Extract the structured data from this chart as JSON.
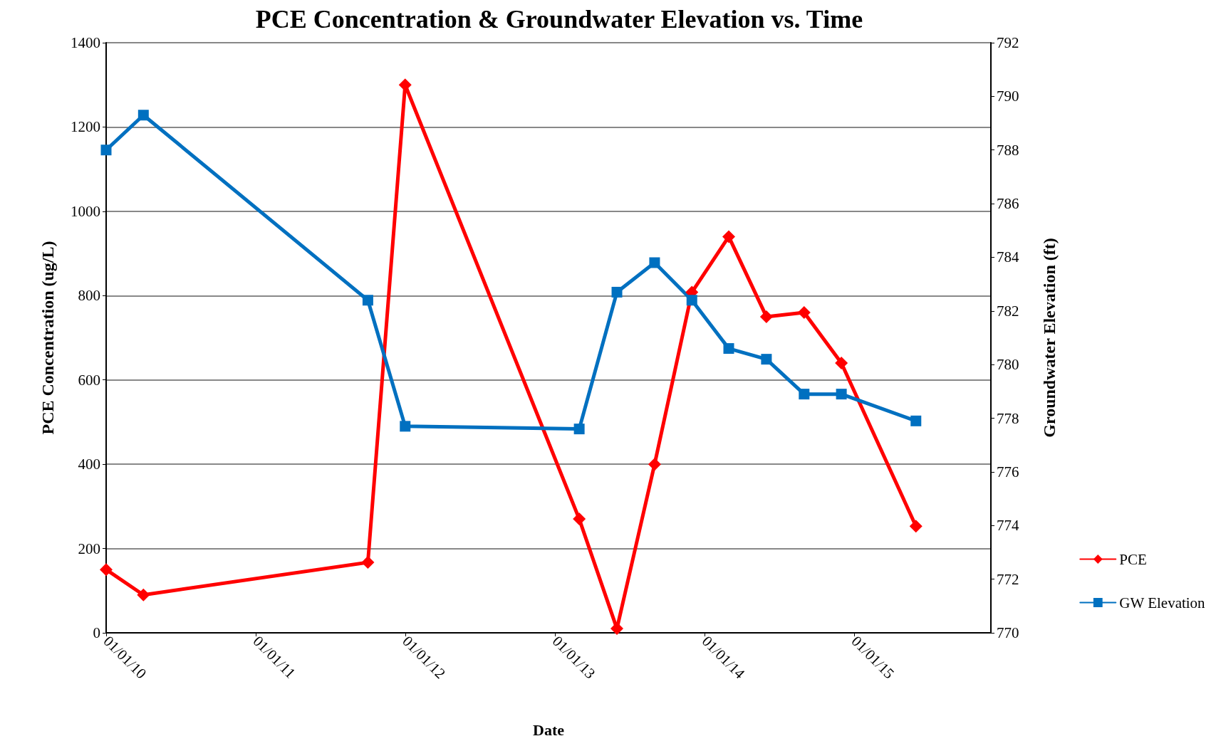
{
  "chart_data": {
    "type": "line",
    "title": "PCE Concentration & Groundwater Elevation vs. Time",
    "xlabel": "Date",
    "ylabel": "PCE Concentration (ug/L)",
    "y2label": "Groundwater Elevation (ft)",
    "xlim": [
      "2010-01-01",
      "2015-12-01"
    ],
    "xticks": [
      {
        "value": "2010-01-01",
        "label": "01/01/10"
      },
      {
        "value": "2011-01-01",
        "label": "01/01/11"
      },
      {
        "value": "2012-01-01",
        "label": "01/01/12"
      },
      {
        "value": "2013-01-01",
        "label": "01/01/13"
      },
      {
        "value": "2014-01-01",
        "label": "01/01/14"
      },
      {
        "value": "2015-01-01",
        "label": "01/01/15"
      }
    ],
    "ylim": [
      0,
      1400
    ],
    "yticks": [
      0,
      200,
      400,
      600,
      800,
      1000,
      1200,
      1400
    ],
    "y2lim": [
      770,
      792
    ],
    "y2ticks": [
      770,
      772,
      774,
      776,
      778,
      780,
      782,
      784,
      786,
      788,
      790,
      792
    ],
    "grid": "y",
    "legend": "right",
    "line_style": "solid",
    "series": [
      {
        "name": "PCE",
        "color": "#ff0000",
        "marker": "diamond",
        "x": [
          "2010-01-01",
          "2010-04-02",
          "2011-10-02",
          "2012-01-01",
          "2013-03-01",
          "2013-06-01",
          "2013-09-01",
          "2013-12-01",
          "2014-03-01",
          "2014-06-01",
          "2014-09-01",
          "2014-12-01",
          "2015-06-01"
        ],
        "values": [
          150,
          90,
          167,
          1300,
          270,
          10,
          400,
          808,
          940,
          750,
          760,
          640,
          253
        ]
      },
      {
        "name": "GW Elevation",
        "color": "#0070c0",
        "marker": "square",
        "axis": "y2",
        "x": [
          "2010-01-01",
          "2010-04-02",
          "2011-10-02",
          "2012-01-01",
          "2013-03-01",
          "2013-06-01",
          "2013-09-01",
          "2013-12-01",
          "2014-03-01",
          "2014-06-01",
          "2014-09-01",
          "2014-12-01",
          "2015-06-01"
        ],
        "values": [
          788.0,
          789.3,
          782.4,
          777.7,
          777.6,
          782.7,
          783.8,
          782.4,
          780.6,
          780.2,
          778.9,
          778.9,
          777.9
        ]
      }
    ]
  }
}
